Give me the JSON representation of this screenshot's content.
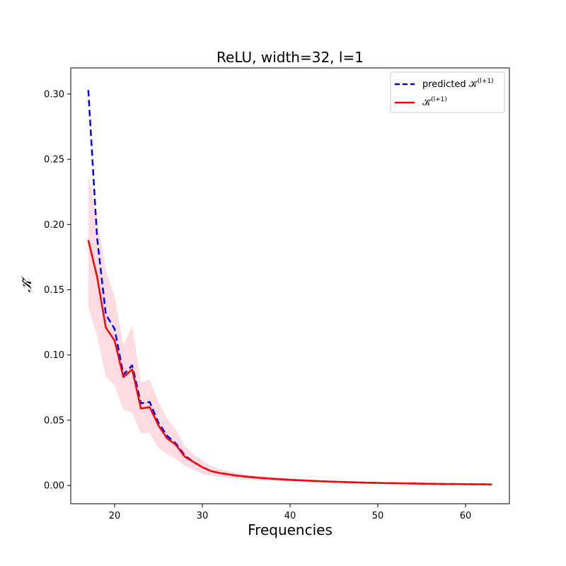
{
  "chart_data": {
    "type": "line",
    "title": "ReLU, width=32, l=1",
    "xlabel": "Frequencies",
    "ylabel": "𝒦̃",
    "xlim": [
      15,
      65
    ],
    "ylim": [
      -0.014,
      0.32
    ],
    "xticks": [
      20,
      30,
      40,
      50,
      60
    ],
    "yticks": [
      0.0,
      0.05,
      0.1,
      0.15,
      0.2,
      0.25,
      0.3
    ],
    "ytick_labels": [
      "0.00",
      "0.05",
      "0.10",
      "0.15",
      "0.20",
      "0.25",
      "0.30"
    ],
    "grid": false,
    "legend_position": "top-right",
    "x": [
      17,
      18,
      19,
      20,
      21,
      22,
      23,
      24,
      25,
      26,
      27,
      28,
      29,
      30,
      31,
      32,
      33,
      34,
      35,
      36,
      37,
      38,
      39,
      40,
      41,
      42,
      43,
      44,
      45,
      46,
      47,
      48,
      49,
      50,
      51,
      52,
      53,
      54,
      55,
      56,
      57,
      58,
      59,
      60,
      61,
      62,
      63
    ],
    "series": [
      {
        "name": "predicted 𝒦̃",
        "name_sup": "(l+1)",
        "color": "#0000ff",
        "style": "dashed",
        "values": [
          0.303,
          0.19,
          0.131,
          0.12,
          0.085,
          0.092,
          0.063,
          0.064,
          0.048,
          0.038,
          0.032,
          0.023,
          0.018,
          0.014,
          0.011,
          0.0095,
          0.0085,
          0.0075,
          0.0068,
          0.0061,
          0.0056,
          0.0051,
          0.0047,
          0.0043,
          0.004,
          0.0037,
          0.0034,
          0.0031,
          0.0029,
          0.0027,
          0.0025,
          0.0023,
          0.0021,
          0.002,
          0.0018,
          0.0017,
          0.0016,
          0.0015,
          0.0014,
          0.0013,
          0.0012,
          0.0011,
          0.0011,
          0.001,
          0.0009,
          0.0009,
          0.0008
        ]
      },
      {
        "name": "𝒦̃",
        "name_sup": "(l+1)",
        "color": "#ff0000",
        "style": "solid",
        "values": [
          0.188,
          0.16,
          0.121,
          0.111,
          0.083,
          0.089,
          0.059,
          0.06,
          0.046,
          0.036,
          0.031,
          0.022,
          0.018,
          0.014,
          0.011,
          0.0095,
          0.0085,
          0.0075,
          0.0068,
          0.0061,
          0.0056,
          0.0051,
          0.0047,
          0.0043,
          0.004,
          0.0037,
          0.0034,
          0.0031,
          0.0029,
          0.0027,
          0.0025,
          0.0023,
          0.0021,
          0.002,
          0.0018,
          0.0017,
          0.0016,
          0.0015,
          0.0014,
          0.0013,
          0.0012,
          0.0011,
          0.0011,
          0.001,
          0.0009,
          0.0009,
          0.0008
        ],
        "band_color": "#ffc0cb",
        "band_upper": [
          0.238,
          0.205,
          0.165,
          0.145,
          0.107,
          0.123,
          0.079,
          0.081,
          0.064,
          0.051,
          0.043,
          0.03,
          0.024,
          0.019,
          0.015,
          0.0125,
          0.011,
          0.0095,
          0.0085,
          0.0077,
          0.007,
          0.0064,
          0.0059,
          0.0054,
          0.005,
          0.0046,
          0.0042,
          0.0039,
          0.0036,
          0.0034,
          0.0031,
          0.0029,
          0.0027,
          0.0025,
          0.0023,
          0.0022,
          0.002,
          0.0019,
          0.0018,
          0.0017,
          0.0016,
          0.0015,
          0.0014,
          0.0013,
          0.0012,
          0.0012,
          0.0011
        ],
        "band_lower": [
          0.137,
          0.115,
          0.083,
          0.077,
          0.058,
          0.056,
          0.04,
          0.04,
          0.029,
          0.024,
          0.02,
          0.015,
          0.012,
          0.009,
          0.0075,
          0.0065,
          0.0058,
          0.0052,
          0.0047,
          0.0043,
          0.0039,
          0.0036,
          0.0033,
          0.003,
          0.0028,
          0.0026,
          0.0024,
          0.0022,
          0.002,
          0.0019,
          0.0017,
          0.0016,
          0.0015,
          0.0014,
          0.0013,
          0.0012,
          0.0011,
          0.0011,
          0.001,
          0.0009,
          0.0009,
          0.0008,
          0.0008,
          0.0007,
          0.0007,
          0.0006,
          0.0006
        ]
      }
    ]
  }
}
